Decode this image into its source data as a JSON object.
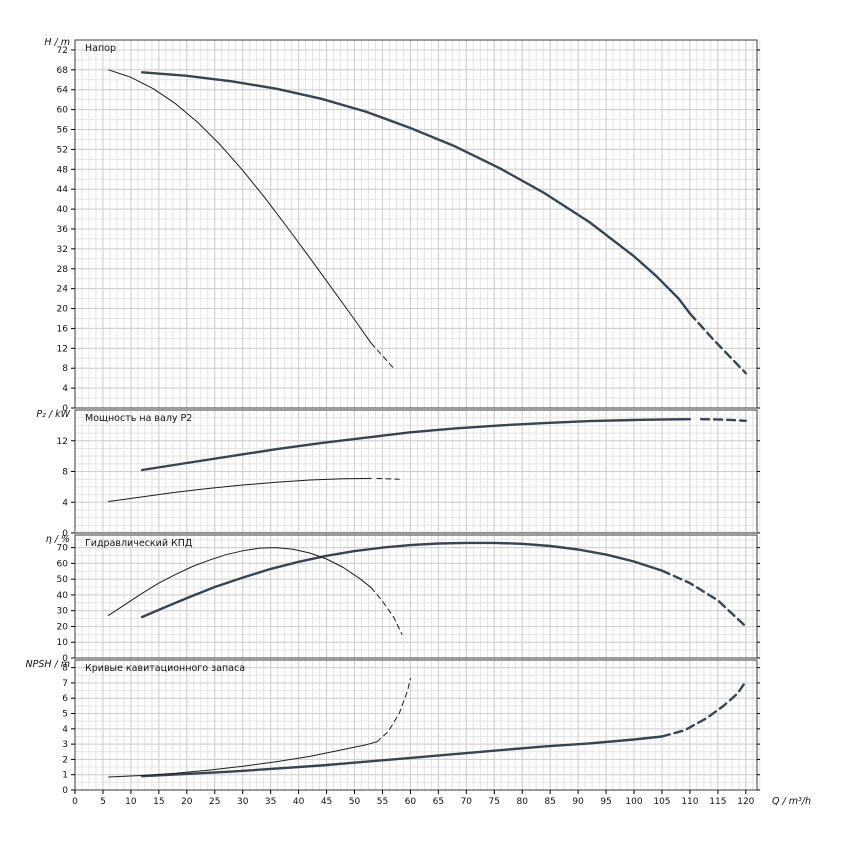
{
  "x_axis": {
    "label": "Q / m³/h",
    "min": 0,
    "max": 122,
    "major_step": 5,
    "minor_step": 1.25,
    "tick_max": 120
  },
  "style": {
    "curve_thick": "#3a4450",
    "curve_thin": "#1c1c1c",
    "grid_minor": "#e4e4e4",
    "grid_major": "#cfcfcf",
    "axis": "#3a3a3a",
    "text": "#111111"
  },
  "chart_data": [
    {
      "id": "head",
      "type": "line",
      "title": "Напор",
      "ylabel": "H / m",
      "ylim": [
        0,
        74
      ],
      "ytick_step": 4,
      "ytick_max": 72,
      "yminor_step": 2,
      "legend": "none",
      "grid": "on",
      "series": [
        {
          "name": "pump-curve-1",
          "style": "thick",
          "solid": [
            [
              12,
              67.5
            ],
            [
              20,
              66.8
            ],
            [
              28,
              65.7
            ],
            [
              36,
              64.2
            ],
            [
              44,
              62.2
            ],
            [
              52,
              59.6
            ],
            [
              60,
              56.3
            ],
            [
              68,
              52.6
            ],
            [
              76,
              48.2
            ],
            [
              84,
              43.2
            ],
            [
              92,
              37.4
            ],
            [
              100,
              30.5
            ],
            [
              104,
              26.5
            ],
            [
              108,
              22
            ],
            [
              110,
              19
            ]
          ],
          "dashed": [
            [
              110,
              19
            ],
            [
              114,
              14
            ],
            [
              117,
              10.5
            ],
            [
              120,
              7
            ]
          ]
        },
        {
          "name": "pump-curve-2",
          "style": "thin",
          "solid": [
            [
              6,
              68
            ],
            [
              10,
              66.5
            ],
            [
              14,
              64.2
            ],
            [
              18,
              61.2
            ],
            [
              22,
              57.4
            ],
            [
              26,
              52.9
            ],
            [
              30,
              47.8
            ],
            [
              34,
              42.2
            ],
            [
              38,
              36.3
            ],
            [
              42,
              30.2
            ],
            [
              46,
              24
            ],
            [
              50,
              17.8
            ],
            [
              53,
              13
            ]
          ],
          "dashed": [
            [
              53,
              13
            ],
            [
              55,
              10.5
            ],
            [
              57,
              8
            ]
          ]
        }
      ]
    },
    {
      "id": "power",
      "type": "line",
      "title": "Мощность на валу P2",
      "ylabel": "P₂ / kW",
      "ylim": [
        0,
        16
      ],
      "ytick_step": 4,
      "ytick_max": 12,
      "yminor_step": 1,
      "legend": "none",
      "grid": "on",
      "series": [
        {
          "name": "pump-curve-1",
          "style": "thick",
          "solid": [
            [
              12,
              8.2
            ],
            [
              20,
              9.1
            ],
            [
              28,
              10
            ],
            [
              36,
              10.9
            ],
            [
              44,
              11.7
            ],
            [
              52,
              12.4
            ],
            [
              60,
              13.1
            ],
            [
              68,
              13.6
            ],
            [
              76,
              14
            ],
            [
              84,
              14.3
            ],
            [
              92,
              14.55
            ],
            [
              100,
              14.7
            ],
            [
              106,
              14.78
            ],
            [
              110,
              14.8
            ]
          ],
          "dashed": [
            [
              112,
              14.8
            ],
            [
              116,
              14.75
            ],
            [
              120,
              14.6
            ]
          ]
        },
        {
          "name": "pump-curve-2",
          "style": "thin",
          "solid": [
            [
              6,
              4.1
            ],
            [
              12,
              4.7
            ],
            [
              18,
              5.3
            ],
            [
              24,
              5.8
            ],
            [
              30,
              6.25
            ],
            [
              36,
              6.6
            ],
            [
              42,
              6.9
            ],
            [
              48,
              7.05
            ],
            [
              53,
              7.1
            ]
          ],
          "dashed": [
            [
              54,
              7.1
            ],
            [
              58,
              7
            ]
          ]
        }
      ]
    },
    {
      "id": "efficiency",
      "type": "line",
      "title": "Гидравлический КПД",
      "ylabel": "η / %",
      "ylim": [
        0,
        78
      ],
      "ytick_step": 10,
      "ytick_max": 70,
      "yminor_step": 5,
      "legend": "none",
      "grid": "on",
      "series": [
        {
          "name": "pump-curve-1",
          "style": "thick",
          "solid": [
            [
              12,
              26
            ],
            [
              16,
              32
            ],
            [
              20,
              38
            ],
            [
              25,
              45
            ],
            [
              30,
              51
            ],
            [
              35,
              56.5
            ],
            [
              40,
              61
            ],
            [
              45,
              64.8
            ],
            [
              50,
              67.8
            ],
            [
              55,
              70
            ],
            [
              60,
              71.6
            ],
            [
              65,
              72.6
            ],
            [
              70,
              73
            ],
            [
              75,
              73
            ],
            [
              80,
              72.4
            ],
            [
              85,
              71
            ],
            [
              90,
              68.8
            ],
            [
              95,
              65.6
            ],
            [
              100,
              61.2
            ],
            [
              105,
              55.4
            ]
          ],
          "dashed": [
            [
              105,
              55.4
            ],
            [
              110,
              47.5
            ],
            [
              115,
              36.5
            ],
            [
              120,
              20
            ]
          ]
        },
        {
          "name": "pump-curve-2",
          "style": "thin",
          "solid": [
            [
              6,
              27
            ],
            [
              9,
              34
            ],
            [
              12,
              41
            ],
            [
              15,
              47.5
            ],
            [
              18,
              53
            ],
            [
              21,
              58
            ],
            [
              24,
              62
            ],
            [
              27,
              65.5
            ],
            [
              30,
              68
            ],
            [
              33,
              69.7
            ],
            [
              36,
              70
            ],
            [
              39,
              69
            ],
            [
              42,
              66.6
            ],
            [
              45,
              62.8
            ],
            [
              48,
              57.4
            ],
            [
              51,
              50.2
            ],
            [
              53,
              44.5
            ]
          ],
          "dashed": [
            [
              53,
              44.5
            ],
            [
              55,
              36
            ],
            [
              57,
              26
            ],
            [
              58.5,
              15
            ]
          ]
        }
      ]
    },
    {
      "id": "npsh",
      "type": "line",
      "title": "Кривые кавитационного запаса",
      "ylabel": "NPSH / m",
      "ylim": [
        0,
        8.5
      ],
      "ytick_step": 1,
      "ytick_max": 8,
      "yminor_step": 0.5,
      "legend": "none",
      "grid": "on",
      "series": [
        {
          "name": "pump-curve-1",
          "style": "thick",
          "solid": [
            [
              12,
              0.9
            ],
            [
              20,
              1.05
            ],
            [
              28,
              1.2
            ],
            [
              36,
              1.4
            ],
            [
              44,
              1.6
            ],
            [
              52,
              1.85
            ],
            [
              60,
              2.1
            ],
            [
              68,
              2.35
            ],
            [
              76,
              2.6
            ],
            [
              84,
              2.85
            ],
            [
              92,
              3.05
            ],
            [
              100,
              3.3
            ],
            [
              105,
              3.5
            ]
          ],
          "dashed": [
            [
              105,
              3.5
            ],
            [
              109,
              3.9
            ],
            [
              113,
              4.7
            ],
            [
              116,
              5.5
            ],
            [
              118.5,
              6.3
            ],
            [
              120,
              7.1
            ]
          ]
        },
        {
          "name": "pump-curve-2",
          "style": "thin",
          "solid": [
            [
              6,
              0.85
            ],
            [
              12,
              0.95
            ],
            [
              18,
              1.1
            ],
            [
              24,
              1.3
            ],
            [
              30,
              1.55
            ],
            [
              36,
              1.85
            ],
            [
              42,
              2.2
            ],
            [
              48,
              2.65
            ],
            [
              52,
              2.95
            ],
            [
              54,
              3.15
            ]
          ],
          "dashed": [
            [
              54,
              3.15
            ],
            [
              56,
              3.8
            ],
            [
              58,
              5
            ],
            [
              59.5,
              6.5
            ],
            [
              60,
              7.3
            ]
          ]
        }
      ]
    }
  ]
}
